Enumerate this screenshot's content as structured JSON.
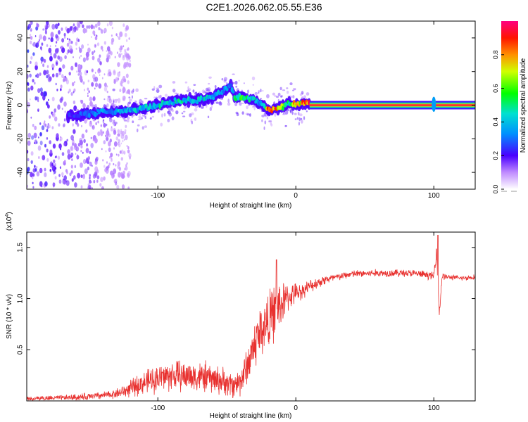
{
  "title": "C2E1.2026.062.05.55.E36",
  "chart_data": [
    {
      "type": "heatmap",
      "title": "",
      "xlabel": "Height of straight line (km)",
      "ylabel": "Frequency (Hz)",
      "xlim": [
        -195,
        130
      ],
      "ylim": [
        -50,
        50
      ],
      "x_ticks": [
        -100,
        0,
        100
      ],
      "x_tick_labels": [
        "-100",
        "0",
        "100"
      ],
      "y_ticks": [
        -40,
        -20,
        0,
        20,
        40
      ],
      "y_tick_labels": [
        "-40",
        "-20",
        "0",
        "20",
        "40"
      ],
      "colorbar": {
        "label": "Normalized spectral amplitude",
        "range": [
          0,
          1
        ],
        "ticks": [
          0.0,
          0.2,
          0.4,
          0.6,
          0.8
        ],
        "tick_labels": [
          "0.0",
          "0.2",
          "0.4",
          "0.6",
          "0.8"
        ]
      },
      "ridge": {
        "x": [
          -160,
          -150,
          -140,
          -130,
          -120,
          -110,
          -100,
          -90,
          -80,
          -70,
          -60,
          -55,
          -50,
          -47,
          -44,
          -40,
          -35,
          -30,
          -25,
          -20,
          -15,
          -10,
          -5,
          0,
          5,
          10,
          130
        ],
        "frequency": [
          -6,
          -5,
          -4,
          -4,
          -3,
          -2,
          0,
          2,
          3,
          3,
          5,
          7,
          10,
          12,
          4,
          5,
          4,
          3,
          1,
          -3,
          -2,
          -1,
          1,
          0,
          1,
          1,
          0
        ],
        "amplitude": [
          0.25,
          0.3,
          0.35,
          0.4,
          0.4,
          0.42,
          0.45,
          0.45,
          0.45,
          0.45,
          0.45,
          0.35,
          0.35,
          0.35,
          0.5,
          0.6,
          0.55,
          0.45,
          0.35,
          0.9,
          0.9,
          0.7,
          0.5,
          0.8,
          0.8,
          0.95,
          0.95
        ]
      },
      "noise_region": {
        "x_range": [
          -195,
          -130
        ],
        "frequency_range": [
          -50,
          50
        ],
        "amplitude": 0.1
      },
      "spike": {
        "x": 100,
        "frequency_range": [
          -4,
          5
        ]
      }
    },
    {
      "type": "line",
      "title": "",
      "xlabel": "Height of straight line (km)",
      "ylabel": "SNR (10 * v/v)",
      "y_scale_label": "(x10",
      "y_scale_exp": "4",
      "y_scale_close": ")",
      "xlim": [
        -195,
        130
      ],
      "ylim": [
        0,
        1.65
      ],
      "x_ticks": [
        -100,
        0,
        100
      ],
      "x_tick_labels": [
        "-100",
        "0",
        "100"
      ],
      "y_ticks": [
        0.5,
        1.0,
        1.5
      ],
      "y_tick_labels": [
        "0.5",
        "1.0",
        "1.5"
      ],
      "color": "#e8302e",
      "series": [
        {
          "name": "SNR",
          "x": [
            -195,
            -170,
            -150,
            -135,
            -125,
            -115,
            -105,
            -95,
            -85,
            -75,
            -65,
            -55,
            -45,
            -40,
            -35,
            -30,
            -25,
            -20,
            -15,
            -10,
            -5,
            0,
            5,
            10,
            20,
            30,
            40,
            60,
            80,
            90,
            95,
            100,
            102,
            104,
            106,
            110,
            120,
            130
          ],
          "y": [
            0.02,
            0.03,
            0.04,
            0.06,
            0.09,
            0.15,
            0.2,
            0.24,
            0.25,
            0.24,
            0.23,
            0.2,
            0.15,
            0.2,
            0.35,
            0.55,
            0.7,
            0.78,
            0.88,
            0.95,
            1.02,
            1.05,
            1.08,
            1.12,
            1.18,
            1.21,
            1.24,
            1.25,
            1.25,
            1.24,
            1.23,
            1.22,
            1.5,
            0.85,
            1.22,
            1.21,
            1.2,
            1.21
          ],
          "noise_amplitude": [
            0.02,
            0.02,
            0.03,
            0.03,
            0.05,
            0.08,
            0.1,
            0.12,
            0.12,
            0.12,
            0.12,
            0.11,
            0.1,
            0.12,
            0.15,
            0.2,
            0.22,
            0.22,
            0.22,
            0.18,
            0.1,
            0.08,
            0.06,
            0.05,
            0.04,
            0.03,
            0.03,
            0.03,
            0.03,
            0.03,
            0.03,
            0.03,
            0.08,
            0.05,
            0.03,
            0.02,
            0.02,
            0.02
          ]
        }
      ],
      "annotations": [
        {
          "x": -14,
          "y": 1.38,
          "text": ""
        }
      ]
    }
  ]
}
